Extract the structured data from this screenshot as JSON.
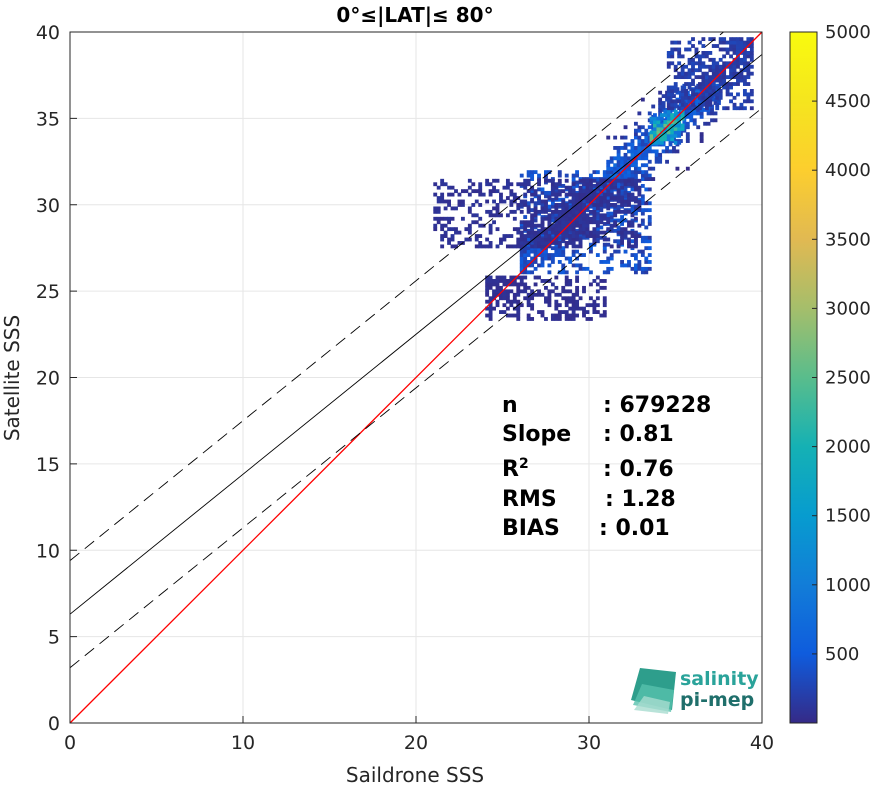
{
  "chart_data": {
    "type": "heatmap",
    "title": "0°≤|LAT|≤ 80°",
    "xlabel": "Saildrone SSS",
    "ylabel": "Satellite SSS",
    "xlim": [
      0,
      40
    ],
    "ylim": [
      0,
      40
    ],
    "x_ticks": [
      "0",
      "10",
      "20",
      "30",
      "40"
    ],
    "y_ticks": [
      "0",
      "5",
      "10",
      "15",
      "20",
      "25",
      "30",
      "35",
      "40"
    ],
    "grid": true,
    "colorbar": {
      "range": [
        0,
        5000
      ],
      "ticks": [
        "500",
        "1000",
        "1500",
        "2000",
        "2500",
        "3000",
        "3500",
        "4000",
        "4500",
        "5000"
      ],
      "colormap": "parula"
    },
    "lines": [
      {
        "kind": "identity",
        "color": "#ff0000",
        "style": "solid",
        "x": [
          0,
          40
        ],
        "y": [
          0,
          40
        ]
      },
      {
        "kind": "regression",
        "color": "#000000",
        "style": "solid",
        "slope": 0.81,
        "intercept": 6.3
      },
      {
        "kind": "regression-plus-2rms",
        "color": "#000000",
        "style": "dashed",
        "slope": 0.81,
        "intercept": 9.4
      },
      {
        "kind": "regression-minus-2rms",
        "color": "#000000",
        "style": "dashed",
        "slope": 0.81,
        "intercept": 3.2
      }
    ],
    "stats": [
      {
        "label": "n",
        "value": ": 679228"
      },
      {
        "label": "Slope",
        "value": ": 0.81"
      },
      {
        "label": "R",
        "sup": "2",
        "value": ": 0.76"
      },
      {
        "label": "RMS",
        "value": ": 1.28"
      },
      {
        "label": "BIAS",
        "value": ": 0.01"
      }
    ],
    "density_clusters": [
      {
        "x": [
          26,
          33.5
        ],
        "y": [
          26,
          32
        ],
        "weight": 900
      },
      {
        "x": [
          31,
          37.5
        ],
        "y": [
          30,
          37
        ],
        "weight": 1400
      },
      {
        "x": [
          33.5,
          35.5
        ],
        "y": [
          33.5,
          35.5
        ],
        "weight": 4500
      },
      {
        "x": [
          34.5,
          39.5
        ],
        "y": [
          35.5,
          39.8
        ],
        "weight": 500
      },
      {
        "x": [
          21,
          33
        ],
        "y": [
          27.5,
          31.5
        ],
        "weight": 200
      },
      {
        "x": [
          24,
          31
        ],
        "y": [
          23.3,
          26
        ],
        "weight": 150
      }
    ]
  },
  "logo": {
    "line1": "salinity",
    "line2": "pi-mep"
  }
}
